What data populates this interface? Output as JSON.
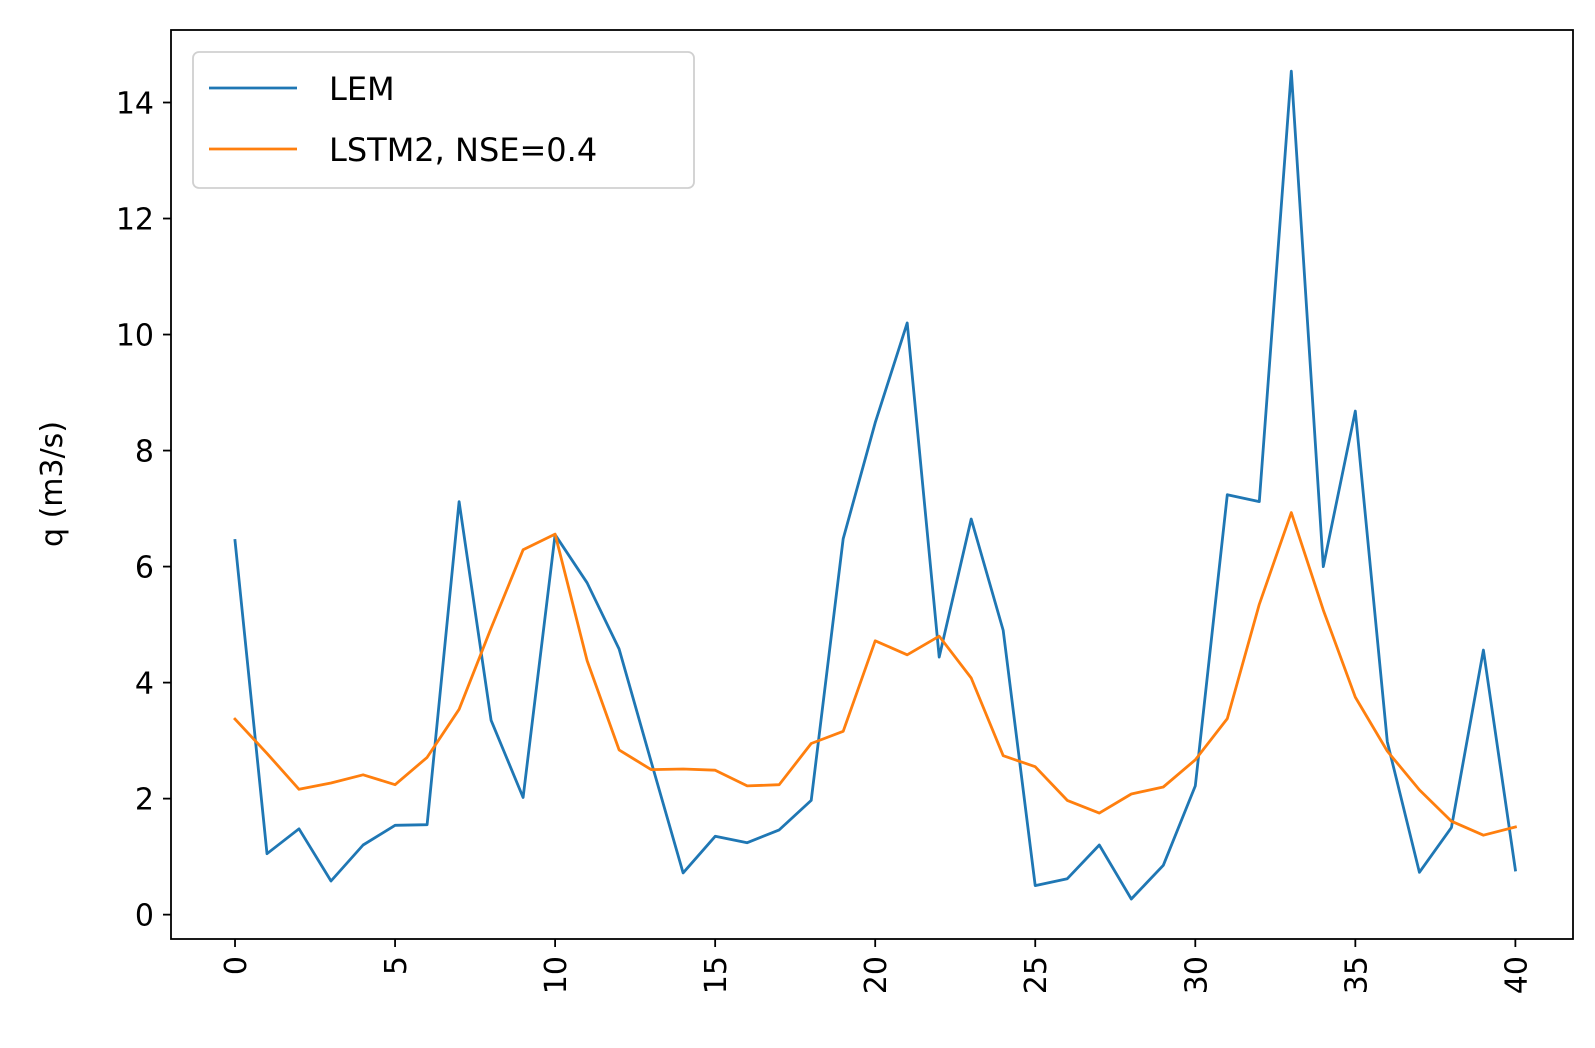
{
  "chart_data": {
    "type": "line",
    "title": "",
    "xlabel": "",
    "ylabel": "q (m3/s)",
    "xlim": [
      -2,
      41.8
    ],
    "ylim": [
      -0.42,
      15.25
    ],
    "x_ticks": [
      0,
      5,
      10,
      15,
      20,
      25,
      30,
      35,
      40
    ],
    "x_tick_labels": [
      "0",
      "5",
      "10",
      "15",
      "20",
      "25",
      "30",
      "35",
      "40"
    ],
    "y_ticks": [
      0,
      2,
      4,
      6,
      8,
      10,
      12,
      14
    ],
    "y_tick_labels": [
      "0",
      "2",
      "4",
      "6",
      "8",
      "10",
      "12",
      "14"
    ],
    "grid": false,
    "legend_position": "top-left",
    "x": [
      0,
      1,
      2,
      3,
      4,
      5,
      6,
      7,
      8,
      9,
      10,
      11,
      12,
      13,
      14,
      15,
      16,
      17,
      18,
      19,
      20,
      21,
      22,
      23,
      24,
      25,
      26,
      27,
      28,
      29,
      30,
      31,
      32,
      33,
      34,
      35,
      36,
      37,
      38,
      39,
      40
    ],
    "series": [
      {
        "name": "LEM",
        "color": "#1f77b4",
        "values": [
          6.45,
          1.05,
          1.48,
          0.58,
          1.2,
          1.54,
          1.55,
          7.12,
          3.35,
          2.02,
          6.55,
          5.72,
          4.58,
          2.64,
          0.72,
          1.35,
          1.24,
          1.46,
          1.97,
          6.48,
          8.48,
          10.2,
          4.44,
          6.82,
          4.9,
          0.5,
          0.62,
          1.2,
          0.27,
          0.85,
          2.22,
          7.24,
          7.12,
          14.54,
          6.0,
          8.68,
          2.98,
          0.73,
          1.5,
          4.56,
          0.77
        ]
      },
      {
        "name": "LSTM2, NSE=0.4",
        "color": "#ff7f0e",
        "values": [
          3.37,
          2.78,
          2.16,
          2.27,
          2.41,
          2.24,
          2.71,
          3.54,
          4.94,
          6.29,
          6.56,
          4.38,
          2.84,
          2.5,
          2.51,
          2.49,
          2.22,
          2.24,
          2.95,
          3.16,
          4.72,
          4.48,
          4.8,
          4.08,
          2.74,
          2.55,
          1.97,
          1.75,
          2.08,
          2.2,
          2.67,
          3.38,
          5.35,
          6.93,
          5.25,
          3.75,
          2.82,
          2.15,
          1.61,
          1.37,
          1.51
        ]
      }
    ]
  }
}
